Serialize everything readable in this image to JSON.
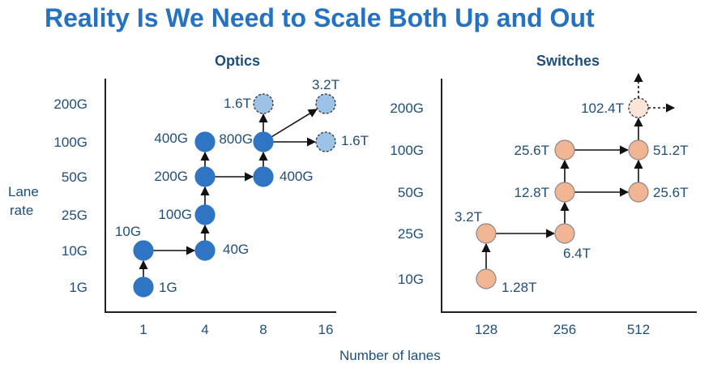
{
  "title": "Reality Is We Need to Scale Both Up and Out",
  "shared": {
    "y_axis_label": [
      "Lane",
      "rate"
    ],
    "x_axis_label": "Number of lanes"
  },
  "optics": {
    "heading": "Optics",
    "y_ticks": [
      "200G",
      "100G",
      "50G",
      "25G",
      "10G",
      "1G"
    ],
    "x_ticks": [
      "1",
      "4",
      "8",
      "16"
    ],
    "nodes": [
      {
        "id": "o1g",
        "label": "1G",
        "col": 0,
        "row": 5,
        "style": "solid"
      },
      {
        "id": "o10g",
        "label": "10G",
        "col": 0,
        "row": 4,
        "style": "solid"
      },
      {
        "id": "o40g",
        "label": "40G",
        "col": 1,
        "row": 4,
        "style": "solid"
      },
      {
        "id": "o100g",
        "label": "100G",
        "col": 1,
        "row": 3,
        "style": "solid"
      },
      {
        "id": "o200g",
        "label": "200G",
        "col": 1,
        "row": 2,
        "style": "solid"
      },
      {
        "id": "o400g4",
        "label": "400G",
        "col": 1,
        "row": 1,
        "style": "solid"
      },
      {
        "id": "o400g8",
        "label": "400G",
        "col": 2,
        "row": 2,
        "style": "solid"
      },
      {
        "id": "o800g",
        "label": "800G",
        "col": 2,
        "row": 1,
        "style": "solid"
      },
      {
        "id": "o1_6t8",
        "label": "1.6T",
        "col": 2,
        "row": 0,
        "style": "future"
      },
      {
        "id": "o1_6t16",
        "label": "1.6T",
        "col": 3,
        "row": 1,
        "style": "future"
      },
      {
        "id": "o3_2t",
        "label": "3.2T",
        "col": 3,
        "row": 0,
        "style": "future"
      }
    ],
    "edges": [
      [
        "o1g",
        "o10g"
      ],
      [
        "o10g",
        "o40g"
      ],
      [
        "o40g",
        "o100g"
      ],
      [
        "o100g",
        "o200g"
      ],
      [
        "o200g",
        "o400g4"
      ],
      [
        "o200g",
        "o400g8"
      ],
      [
        "o400g8",
        "o800g"
      ],
      [
        "o800g",
        "o1_6t8"
      ],
      [
        "o800g",
        "o1_6t16"
      ],
      [
        "o800g",
        "o3_2t"
      ]
    ]
  },
  "switches": {
    "heading": "Switches",
    "y_ticks": [
      "200G",
      "100G",
      "50G",
      "25G",
      "10G"
    ],
    "x_ticks": [
      "128",
      "256",
      "512"
    ],
    "nodes": [
      {
        "id": "s1_28t",
        "label": "1.28T",
        "col": 0,
        "row": 4,
        "style": "solid"
      },
      {
        "id": "s3_2t",
        "label": "3.2T",
        "col": 0,
        "row": 3,
        "style": "solid"
      },
      {
        "id": "s6_4t",
        "label": "6.4T",
        "col": 1,
        "row": 3,
        "style": "solid"
      },
      {
        "id": "s12_8t",
        "label": "12.8T",
        "col": 1,
        "row": 2,
        "style": "solid"
      },
      {
        "id": "s25_6t_a",
        "label": "25.6T",
        "col": 1,
        "row": 1,
        "style": "solid"
      },
      {
        "id": "s25_6t_b",
        "label": "25.6T",
        "col": 2,
        "row": 2,
        "style": "solid"
      },
      {
        "id": "s51_2t",
        "label": "51.2T",
        "col": 2,
        "row": 1,
        "style": "solid"
      },
      {
        "id": "s102_4t",
        "label": "102.4T",
        "col": 2,
        "row": 0,
        "style": "future"
      }
    ],
    "edges": [
      [
        "s1_28t",
        "s3_2t"
      ],
      [
        "s3_2t",
        "s6_4t"
      ],
      [
        "s6_4t",
        "s12_8t"
      ],
      [
        "s12_8t",
        "s25_6t_a"
      ],
      [
        "s12_8t",
        "s25_6t_b"
      ],
      [
        "s25_6t_a",
        "s51_2t"
      ],
      [
        "s25_6t_b",
        "s51_2t"
      ],
      [
        "s51_2t",
        "s102_4t"
      ]
    ],
    "future_directions": [
      "up",
      "right"
    ]
  },
  "colors": {
    "title": "#2372c4",
    "text": "#1f4e79",
    "optics_node": "#2f75c4",
    "optics_future": "#9cc3e6",
    "switch_node": "#f1b593",
    "switch_future": "#fbe5d8",
    "node_stroke": "#8a8a8a",
    "axis": "#222222"
  }
}
